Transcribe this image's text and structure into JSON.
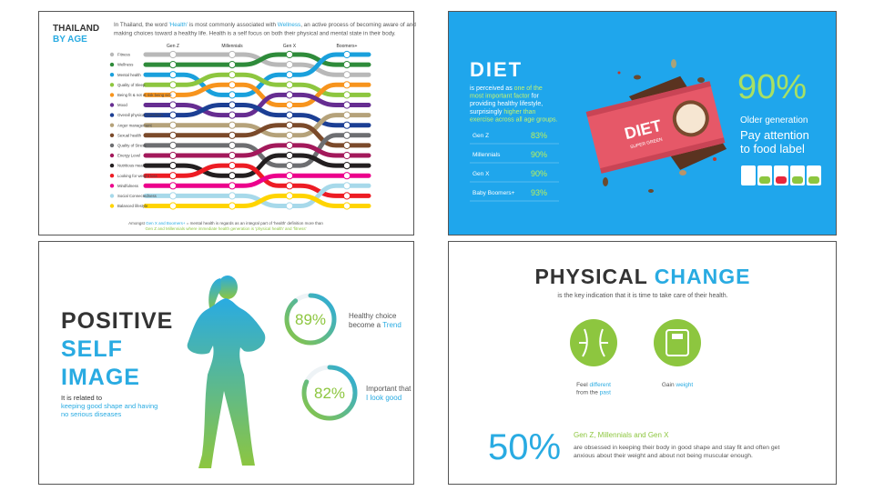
{
  "thailand": {
    "title": "THAILAND",
    "subtitle": "BY AGE",
    "intro": [
      [
        "In Thailand, the word ",
        {
          "text": "'Health'",
          "color": "#29abe2"
        },
        " is most commonly associated with ",
        {
          "text": "Wellness",
          "color": "#29abe2"
        },
        ", an active process of becoming aware of and"
      ],
      [
        "making choices toward a healthy life. Health is a self focus on both their physical and mental state in their body."
      ]
    ],
    "generations": [
      "Gen Z",
      "Millennials",
      "Gen X",
      "Boomers+"
    ],
    "items": [
      {
        "name": "Fitness",
        "color": "#b8b8b8",
        "ranks": [
          1,
          1,
          2,
          3
        ]
      },
      {
        "name": "Wellness",
        "color": "#2e8b3a",
        "ranks": [
          2,
          2,
          1,
          2
        ]
      },
      {
        "name": "Mental health",
        "color": "#1aa0dc",
        "ranks": [
          3,
          5,
          3,
          1
        ]
      },
      {
        "name": "Quality of Sleep",
        "color": "#8dc63f",
        "ranks": [
          4,
          3,
          4,
          5
        ]
      },
      {
        "name": "Being fit & not at risk being sick",
        "color": "#f7941d",
        "ranks": [
          5,
          4,
          6,
          4
        ]
      },
      {
        "name": "Mood",
        "color": "#662d91",
        "ranks": [
          6,
          7,
          5,
          6
        ]
      },
      {
        "name": "Overall physical Condition",
        "color": "#1c3f94",
        "ranks": [
          7,
          6,
          7,
          8
        ]
      },
      {
        "name": "Anger management",
        "color": "#b5a27a",
        "ranks": [
          8,
          8,
          9,
          7
        ]
      },
      {
        "name": "Sexual health",
        "color": "#7b4a2a",
        "ranks": [
          9,
          9,
          8,
          10
        ]
      },
      {
        "name": "Quality of Stress",
        "color": "#6d6e71",
        "ranks": [
          10,
          10,
          12,
          9
        ]
      },
      {
        "name": "Energy Level",
        "color": "#a3195b",
        "ranks": [
          11,
          11,
          10,
          11
        ]
      },
      {
        "name": "Nutritious meal",
        "color": "#231f20",
        "ranks": [
          12,
          13,
          11,
          12
        ]
      },
      {
        "name": "Looking for weight loss",
        "color": "#ed1c24",
        "ranks": [
          13,
          12,
          14,
          15
        ]
      },
      {
        "name": "Mindfulness",
        "color": "#ec008c",
        "ranks": [
          14,
          14,
          13,
          13
        ]
      },
      {
        "name": "Social Connectedness",
        "color": "#a7d9ea",
        "ranks": [
          15,
          15,
          16,
          14
        ]
      },
      {
        "name": "Balanced lifestyle",
        "color": "#ffd400",
        "ranks": [
          16,
          16,
          15,
          16
        ]
      }
    ],
    "footer": [
      [
        "Amongst ",
        {
          "text": "Gen X and Boomers+",
          "color": "#29abe2"
        },
        " = mental health is regards as an integral part of 'health' definition more than"
      ],
      [
        {
          "text": "Gen Z and Millennials where immediate health generation is 'physical health' and 'fitness'",
          "color": "#8dc63f"
        }
      ]
    ]
  },
  "diet": {
    "title": "DIET",
    "text": [
      [
        "is perceived as ",
        {
          "text": "one of the",
          "color": "#c6f36e"
        }
      ],
      [
        {
          "text": "most important factor",
          "color": "#c6f36e"
        },
        " for"
      ],
      [
        "providing healthy lifestyle,"
      ],
      [
        "surprisingly ",
        {
          "text": "higher than",
          "color": "#c6f36e"
        }
      ],
      [
        {
          "text": "exercise across all age groups.",
          "color": "#c6f36e"
        }
      ]
    ],
    "groups": [
      {
        "name": "Gen Z",
        "label": "83%"
      },
      {
        "name": "Millennials",
        "label": "90%"
      },
      {
        "name": "Gen X",
        "label": "90%"
      },
      {
        "name": "Baby Boomers+",
        "label": "93%"
      }
    ],
    "product": "DIET",
    "product_sub": "SUPER GREEN",
    "highlight": "90%",
    "caption": [
      "Older generation",
      "Pay attention",
      "to food label"
    ]
  },
  "self_image": {
    "title": [
      "POSITIVE",
      "SELF",
      "IMAGE"
    ],
    "text": [
      [
        "It is related to"
      ],
      [
        {
          "text": "keeping good shape and having",
          "color": "#29abe2"
        }
      ],
      [
        {
          "text": "no serious diseases",
          "color": "#29abe2"
        }
      ]
    ],
    "stats": [
      {
        "value": 89,
        "label": "89%",
        "text": [
          [
            "Healthy choice"
          ],
          [
            "become a ",
            {
              "text": "Trend",
              "color": "#29abe2"
            }
          ]
        ]
      },
      {
        "value": 82,
        "label": "82%",
        "text": [
          [
            "Important that"
          ],
          [
            {
              "text": "I look good",
              "color": "#29abe2"
            }
          ]
        ]
      }
    ]
  },
  "physical_change": {
    "title": [
      [
        "PHYSICAL ",
        {
          "text": "CHANGE",
          "color": "#29abe2"
        }
      ]
    ],
    "subtitle": "is the key indication that it is time to take care of their health.",
    "icon_captions": [
      [
        [
          "Feel ",
          {
            "text": "different",
            "color": "#29abe2"
          }
        ],
        [
          "from the ",
          {
            "text": "past",
            "color": "#29abe2"
          }
        ]
      ],
      [
        [
          "Gain ",
          {
            "text": "weight",
            "color": "#29abe2"
          }
        ]
      ]
    ],
    "highlight": "50%",
    "highlight_title": "Gen Z, Millennials and Gen X",
    "text": [
      [
        "are obsessed in keeping their body in good shape and stay fit and often get"
      ],
      [
        "anxious about their weight and about not being muscular enough."
      ]
    ]
  }
}
